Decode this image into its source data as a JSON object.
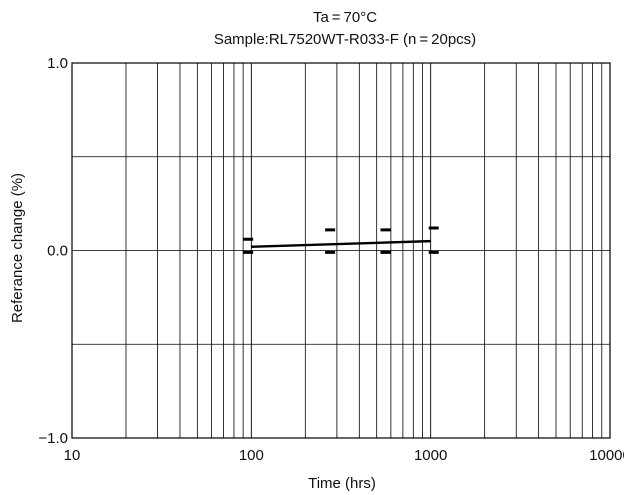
{
  "chart_data": {
    "type": "line",
    "title": "Ta = 70°C",
    "subtitle": "Sample:RL7520WT-R033-F (n = 20pcs)",
    "xlabel": "Time (hrs)",
    "ylabel": "Referance change (%)",
    "x_scale": "log",
    "xlim": [
      10,
      10000
    ],
    "ylim": [
      -1.0,
      1.0
    ],
    "x_ticks": [
      10,
      100,
      1000,
      10000
    ],
    "x_tick_labels": [
      "10",
      "100",
      "1000",
      "10000"
    ],
    "y_ticks": [
      1.0,
      0.0,
      -1.0
    ],
    "y_tick_labels": [
      "1.0",
      "0.0",
      "−1.0"
    ],
    "y_gridlines": [
      -0.5,
      0.0,
      0.5
    ],
    "grid": true,
    "series": [
      {
        "x": [
          100,
          1000
        ],
        "y": [
          0.02,
          0.05
        ]
      }
    ],
    "range_markers": [
      {
        "x": 96,
        "max": 0.06,
        "min": -0.01
      },
      {
        "x": 275,
        "max": 0.11,
        "min": -0.01
      },
      {
        "x": 560,
        "max": 0.11,
        "min": -0.01
      },
      {
        "x": 1040,
        "max": 0.12,
        "min": -0.01
      }
    ],
    "colors": {
      "line": "#000000",
      "grid": "#000000"
    }
  }
}
